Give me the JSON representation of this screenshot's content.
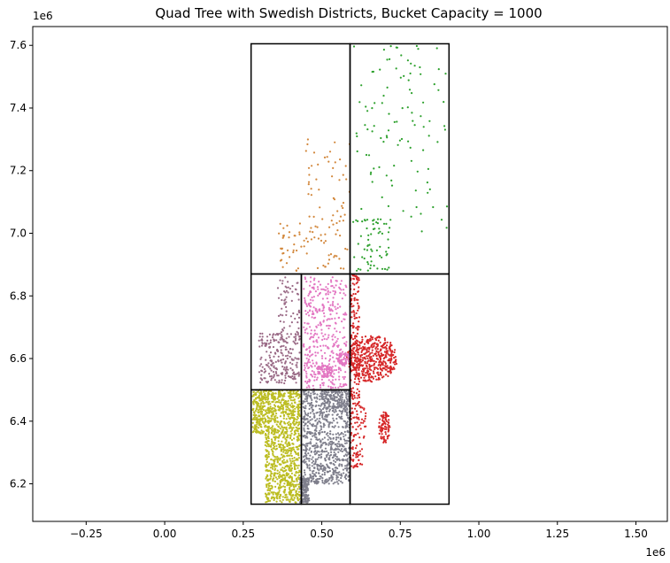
{
  "chart_data": {
    "type": "scatter",
    "title": "Quad Tree with Swedish Districts, Bucket Capacity = 1000",
    "xlabel": "",
    "ylabel": "",
    "x_offset_label": "1e6",
    "y_offset_label": "1e6",
    "xlim": [
      -0.42,
      1.6
    ],
    "ylim": [
      6.08,
      7.66
    ],
    "x_ticks": [
      -0.25,
      0.0,
      0.25,
      0.5,
      0.75,
      1.0,
      1.25,
      1.5
    ],
    "x_tick_labels": [
      "−0.25",
      "0.00",
      "0.25",
      "0.50",
      "0.75",
      "1.00",
      "1.25",
      "1.50"
    ],
    "y_ticks": [
      6.2,
      6.4,
      6.6,
      6.8,
      7.0,
      7.2,
      7.4,
      7.6
    ],
    "y_tick_labels": [
      "6.2",
      "6.4",
      "6.6",
      "6.8",
      "7.0",
      "7.2",
      "7.4",
      "7.6"
    ],
    "grid": false,
    "quad_cells": [
      {
        "x0": 0.275,
        "y0": 6.87,
        "x1": 0.59,
        "y1": 7.605
      },
      {
        "x0": 0.59,
        "y0": 6.87,
        "x1": 0.905,
        "y1": 7.605
      },
      {
        "x0": 0.59,
        "y0": 6.135,
        "x1": 0.905,
        "y1": 6.87
      },
      {
        "x0": 0.275,
        "y0": 6.5,
        "x1": 0.435,
        "y1": 6.87
      },
      {
        "x0": 0.435,
        "y0": 6.5,
        "x1": 0.59,
        "y1": 6.87
      },
      {
        "x0": 0.275,
        "y0": 6.135,
        "x1": 0.435,
        "y1": 6.5
      },
      {
        "x0": 0.435,
        "y0": 6.135,
        "x1": 0.59,
        "y1": 6.5
      }
    ],
    "clusters": [
      {
        "color": "#2ca02c",
        "count": 170,
        "seed": 11,
        "regions": [
          {
            "kind": "box",
            "x0": 0.6,
            "x1": 0.9,
            "y0": 7.0,
            "y1": 7.6,
            "w": 0.6
          },
          {
            "kind": "box",
            "x0": 0.6,
            "x1": 0.72,
            "y0": 6.88,
            "y1": 7.05,
            "w": 0.4
          }
        ]
      },
      {
        "color": "#d2873b",
        "count": 120,
        "seed": 23,
        "regions": [
          {
            "kind": "box",
            "x0": 0.36,
            "x1": 0.59,
            "y0": 6.88,
            "y1": 7.05,
            "w": 0.65
          },
          {
            "kind": "box",
            "x0": 0.45,
            "x1": 0.59,
            "y0": 7.05,
            "y1": 7.3,
            "w": 0.35
          }
        ]
      },
      {
        "color": "#d62728",
        "count": 800,
        "seed": 31,
        "regions": [
          {
            "kind": "ellipse",
            "cx": 0.66,
            "cy": 6.6,
            "rx": 0.08,
            "ry": 0.075,
            "w": 0.55
          },
          {
            "kind": "ellipse",
            "cx": 0.7,
            "cy": 6.38,
            "rx": 0.018,
            "ry": 0.05,
            "w": 0.12
          },
          {
            "kind": "box",
            "x0": 0.59,
            "x1": 0.62,
            "y0": 6.45,
            "y1": 6.87,
            "w": 0.2
          },
          {
            "kind": "box",
            "x0": 0.59,
            "x1": 0.63,
            "y0": 6.25,
            "y1": 6.32,
            "w": 0.05
          },
          {
            "kind": "box",
            "x0": 0.59,
            "x1": 0.64,
            "y0": 6.32,
            "y1": 6.45,
            "w": 0.08
          }
        ]
      },
      {
        "color": "#9a6a86",
        "count": 300,
        "seed": 41,
        "regions": [
          {
            "kind": "box",
            "x0": 0.3,
            "x1": 0.43,
            "y0": 6.52,
            "y1": 6.68,
            "w": 0.8
          },
          {
            "kind": "box",
            "x0": 0.36,
            "x1": 0.43,
            "y0": 6.68,
            "y1": 6.86,
            "w": 0.2
          }
        ]
      },
      {
        "color": "#e377c2",
        "count": 520,
        "seed": 53,
        "regions": [
          {
            "kind": "box",
            "x0": 0.44,
            "x1": 0.58,
            "y0": 6.5,
            "y1": 6.86,
            "w": 0.75
          },
          {
            "kind": "ellipse",
            "cx": 0.51,
            "cy": 6.56,
            "rx": 0.03,
            "ry": 0.02,
            "w": 0.15
          },
          {
            "kind": "ellipse",
            "cx": 0.57,
            "cy": 6.6,
            "rx": 0.02,
            "ry": 0.02,
            "w": 0.1
          }
        ]
      },
      {
        "color": "#7f7f8c",
        "count": 1100,
        "seed": 67,
        "regions": [
          {
            "kind": "box",
            "x0": 0.44,
            "x1": 0.59,
            "y0": 6.2,
            "y1": 6.5,
            "w": 0.75
          },
          {
            "kind": "box",
            "x0": 0.43,
            "x1": 0.46,
            "y0": 6.14,
            "y1": 6.22,
            "w": 0.15
          },
          {
            "kind": "box",
            "x0": 0.5,
            "x1": 0.59,
            "y0": 6.44,
            "y1": 6.5,
            "w": 0.1
          }
        ]
      },
      {
        "color": "#bcbd22",
        "count": 1200,
        "seed": 79,
        "regions": [
          {
            "kind": "box",
            "x0": 0.28,
            "x1": 0.43,
            "y0": 6.36,
            "y1": 6.5,
            "w": 0.5
          },
          {
            "kind": "box",
            "x0": 0.32,
            "x1": 0.43,
            "y0": 6.14,
            "y1": 6.36,
            "w": 0.5
          }
        ]
      }
    ]
  }
}
